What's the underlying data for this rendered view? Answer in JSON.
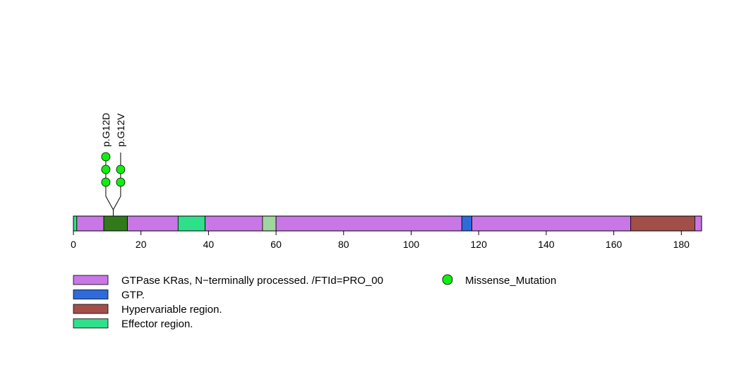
{
  "chart_data": {
    "type": "lollipop",
    "title": "",
    "xlabel": "",
    "ylabel": "",
    "xlim": [
      0,
      186
    ],
    "x_ticks": [
      0,
      20,
      40,
      60,
      80,
      100,
      120,
      140,
      160,
      180
    ],
    "protein_length": 186,
    "regions": [
      {
        "start": 0,
        "end": 1,
        "color": "#2fe08a",
        "legend": "effector"
      },
      {
        "start": 1,
        "end": 9,
        "color": "#c977e6",
        "legend": "gtpase"
      },
      {
        "start": 9,
        "end": 16,
        "color": "#317a1b",
        "legend": ""
      },
      {
        "start": 16,
        "end": 31,
        "color": "#c977e6",
        "legend": "gtpase"
      },
      {
        "start": 31,
        "end": 39,
        "color": "#2fe08a",
        "legend": "effector"
      },
      {
        "start": 39,
        "end": 56,
        "color": "#c977e6",
        "legend": "gtpase"
      },
      {
        "start": 56,
        "end": 60,
        "color": "#9fd69f",
        "legend": ""
      },
      {
        "start": 60,
        "end": 115,
        "color": "#c977e6",
        "legend": "gtpase"
      },
      {
        "start": 115,
        "end": 118,
        "color": "#2e6bda",
        "legend": "gtp"
      },
      {
        "start": 118,
        "end": 165,
        "color": "#c977e6",
        "legend": "gtpase"
      },
      {
        "start": 165,
        "end": 184,
        "color": "#a24f4a",
        "legend": "hypervariable"
      },
      {
        "start": 184,
        "end": 186,
        "color": "#c977e6",
        "legend": "gtpase"
      }
    ],
    "mutations": [
      {
        "label": "p.G12D",
        "position": 12,
        "count": 3,
        "type": "Missense_Mutation"
      },
      {
        "label": "p.G12V",
        "position": 12,
        "count": 2,
        "type": "Missense_Mutation"
      }
    ],
    "mutation_color": "#11ee11",
    "legend": [
      {
        "key": "gtpase",
        "label": "GTPase KRas, N−terminally processed. /FTId=PRO_00",
        "color": "#c977e6",
        "shape": "rect"
      },
      {
        "key": "gtp",
        "label": "GTP.",
        "color": "#2e6bda",
        "shape": "rect"
      },
      {
        "key": "hypervariable",
        "label": "Hypervariable region.",
        "color": "#a24f4a",
        "shape": "rect"
      },
      {
        "key": "effector",
        "label": "Effector region.",
        "color": "#2fe08a",
        "shape": "rect"
      },
      {
        "key": "missense",
        "label": "Missense_Mutation",
        "color": "#11ee11",
        "shape": "circle"
      }
    ]
  }
}
